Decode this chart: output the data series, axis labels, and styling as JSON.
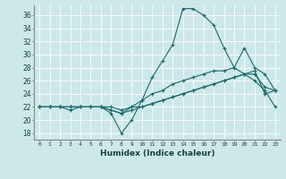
{
  "title": "",
  "xlabel": "Humidex (Indice chaleur)",
  "ylabel": "",
  "bg_color": "#cce8e8",
  "line_color": "#1a6b6b",
  "xlim": [
    -0.5,
    23.5
  ],
  "ylim": [
    17,
    37.5
  ],
  "yticks": [
    18,
    20,
    22,
    24,
    26,
    28,
    30,
    32,
    34,
    36
  ],
  "xticks": [
    0,
    1,
    2,
    3,
    4,
    5,
    6,
    7,
    8,
    9,
    10,
    11,
    12,
    13,
    14,
    15,
    16,
    17,
    18,
    19,
    20,
    21,
    22,
    23
  ],
  "lines": [
    [
      0,
      22,
      1,
      22,
      2,
      22,
      3,
      22,
      4,
      22,
      5,
      22,
      6,
      22,
      7,
      21,
      8,
      18,
      9,
      20,
      10,
      23,
      11,
      26.5,
      12,
      29,
      13,
      31.5,
      14,
      37,
      15,
      37,
      16,
      36,
      17,
      34.5,
      18,
      31,
      19,
      28,
      20,
      27,
      21,
      26,
      22,
      24.5,
      23,
      22
    ],
    [
      0,
      22,
      1,
      22,
      2,
      22,
      3,
      21.5,
      4,
      22,
      5,
      22,
      6,
      22,
      7,
      21.5,
      8,
      21,
      9,
      22,
      10,
      23,
      11,
      24,
      12,
      24.5,
      13,
      25.5,
      14,
      26,
      15,
      26.5,
      16,
      27,
      17,
      27.5,
      18,
      27.5,
      19,
      28,
      20,
      31,
      21,
      28,
      22,
      27,
      23,
      24.5
    ],
    [
      0,
      22,
      1,
      22,
      2,
      22,
      3,
      22,
      4,
      22,
      5,
      22,
      6,
      22,
      7,
      21.5,
      8,
      21,
      9,
      21.5,
      10,
      22,
      11,
      22.5,
      12,
      23,
      13,
      23.5,
      14,
      24,
      15,
      24.5,
      16,
      25,
      17,
      25.5,
      18,
      26,
      19,
      26.5,
      20,
      27,
      21,
      27.5,
      22,
      24,
      23,
      24.5
    ],
    [
      0,
      22,
      1,
      22,
      2,
      22,
      3,
      22,
      4,
      22,
      5,
      22,
      6,
      22,
      7,
      22,
      8,
      21.5,
      9,
      22,
      10,
      22,
      11,
      22.5,
      12,
      23,
      13,
      23.5,
      14,
      24,
      15,
      24.5,
      16,
      25,
      17,
      25.5,
      18,
      26,
      19,
      26.5,
      20,
      27,
      21,
      27,
      22,
      25,
      23,
      24.5
    ]
  ]
}
